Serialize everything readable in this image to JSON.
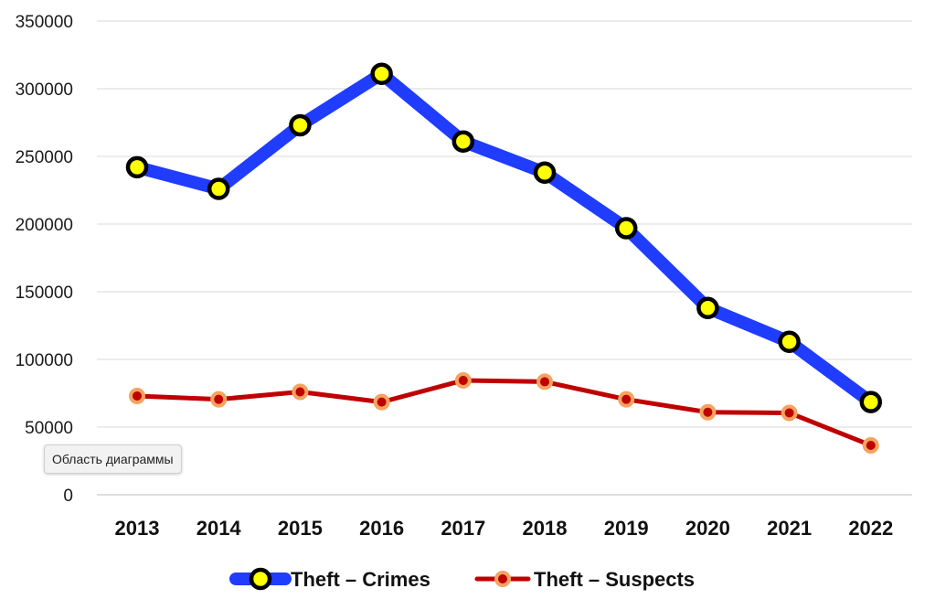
{
  "chart_data": {
    "type": "line",
    "title": "",
    "xlabel": "",
    "ylabel": "",
    "categories": [
      "2013",
      "2014",
      "2015",
      "2016",
      "2017",
      "2018",
      "2019",
      "2020",
      "2021",
      "2022"
    ],
    "ylim": [
      0,
      350000
    ],
    "yticks": [
      "0",
      "50000",
      "100000",
      "150000",
      "200000",
      "250000",
      "300000",
      "350000"
    ],
    "grid": true,
    "legend_position": "bottom",
    "series": [
      {
        "name": "Theft – Crimes",
        "values": [
          242000,
          226000,
          273000,
          311000,
          261000,
          238000,
          197000,
          138000,
          113000,
          68500
        ],
        "line_color": "#1f3cff",
        "marker_fill": "#ffff00",
        "marker_edge": "#000000"
      },
      {
        "name": "Theft – Suspects",
        "values": [
          73000,
          70500,
          76000,
          68500,
          84500,
          83500,
          70500,
          61000,
          60500,
          36500
        ],
        "line_color": "#c00000",
        "marker_fill": "#c00000",
        "marker_edge": "#f4a460"
      }
    ]
  },
  "tooltip": {
    "text": "Область диаграммы"
  }
}
